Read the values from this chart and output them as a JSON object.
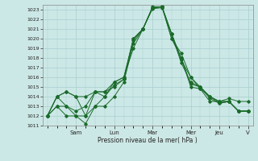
{
  "title": "",
  "xlabel": "Pression niveau de la mer( hPa )",
  "ylabel": "",
  "bg_color": "#cce8e6",
  "grid_color": "#a8cece",
  "line_color": "#1a6b2a",
  "ylim": [
    1011,
    1023.5
  ],
  "yticks": [
    1011,
    1012,
    1013,
    1014,
    1015,
    1016,
    1017,
    1018,
    1019,
    1020,
    1021,
    1022,
    1023
  ],
  "day_labels": [
    "Sam",
    "Lun",
    "Mar",
    "Mer",
    "Jeu",
    "V"
  ],
  "day_positions": [
    3,
    7,
    11,
    15,
    18,
    21
  ],
  "n_points": 22,
  "series": [
    [
      1012,
      1014,
      1013,
      1012,
      1012,
      1014.5,
      1014,
      1015.5,
      1016,
      1019,
      1021,
      1023.2,
      1023.3,
      1020.5,
      1018,
      1015,
      1014.8,
      1013.5,
      1013.5,
      1013.5,
      1012.5,
      1012.5
    ],
    [
      1012,
      1013,
      1012,
      1012,
      1011.2,
      1013,
      1013,
      1014,
      1015.5,
      1019.5,
      1021,
      1023.2,
      1023.3,
      1020.5,
      1017.5,
      1015.5,
      1015,
      1014,
      1013.5,
      1013.5,
      1012.5,
      1012.5
    ],
    [
      1012,
      1014,
      1014.5,
      1014,
      1014,
      1014.5,
      1014.5,
      1015,
      1015.8,
      1020,
      1021,
      1023.3,
      1023.3,
      1020,
      1018.5,
      1016,
      1015,
      1014,
      1013.5,
      1013.8,
      1013.5,
      1013.5
    ],
    [
      1012,
      1013,
      1013,
      1012.5,
      1013,
      1014.5,
      1014.5,
      1015.5,
      1016,
      1020,
      1021,
      1023.2,
      1023.3,
      1020,
      1018,
      1015.3,
      1015,
      1013.8,
      1013.3,
      1013.5,
      1012.5,
      1012.5
    ],
    [
      1012,
      1014,
      1014.5,
      1014,
      1012,
      1013,
      1014,
      1015.2,
      1015.8,
      1019.8,
      1021,
      1023.1,
      1023.2,
      1020.5,
      1017.8,
      1016,
      1014.8,
      1014,
      1013.3,
      1013.5,
      1012.5,
      1012.5
    ]
  ]
}
